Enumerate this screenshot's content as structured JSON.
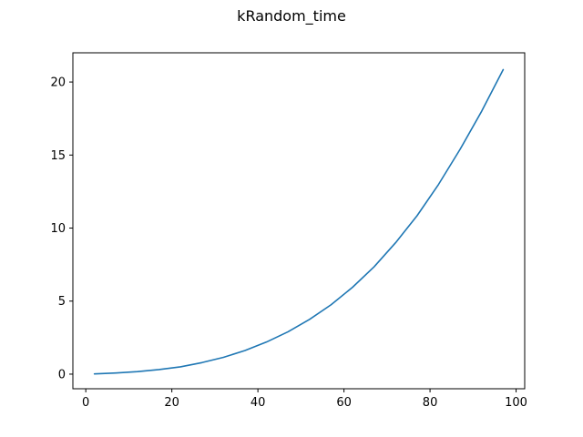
{
  "chart_data": {
    "type": "line",
    "title": "kRandom_time",
    "xlabel": "",
    "ylabel": "",
    "xlim": [
      -3,
      102
    ],
    "ylim": [
      -1,
      22
    ],
    "xticks": [
      0,
      20,
      40,
      60,
      80,
      100
    ],
    "yticks": [
      0,
      5,
      10,
      15,
      20
    ],
    "grid": false,
    "series": [
      {
        "color": "#1f77b4",
        "x": [
          2,
          7,
          12,
          17,
          22,
          27,
          32,
          37,
          42,
          47,
          52,
          57,
          62,
          67,
          72,
          77,
          82,
          87,
          92,
          97
        ],
        "y": [
          0.02,
          0.08,
          0.17,
          0.31,
          0.5,
          0.79,
          1.15,
          1.62,
          2.2,
          2.9,
          3.75,
          4.75,
          5.95,
          7.35,
          9.0,
          10.85,
          13.0,
          15.4,
          18.0,
          20.85
        ]
      }
    ]
  }
}
